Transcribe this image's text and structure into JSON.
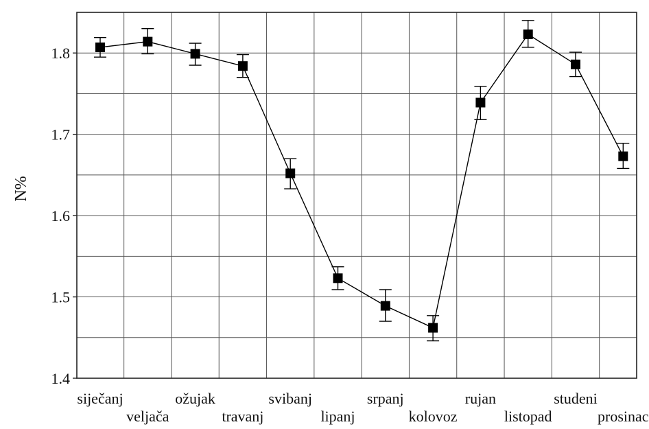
{
  "chart_data": {
    "type": "line",
    "title": "",
    "xlabel": "",
    "ylabel": "N%",
    "ylim": [
      1.4,
      1.85
    ],
    "yticks": [
      "1.4",
      "1.5",
      "1.6",
      "1.7",
      "1.8"
    ],
    "grid": true,
    "categories": [
      "siječanj",
      "veljača",
      "ožujak",
      "travanj",
      "svibanj",
      "lipanj",
      "srpanj",
      "kolovoz",
      "rujan",
      "listopad",
      "studeni",
      "prosinac"
    ],
    "series": [
      {
        "values": [
          1.807,
          1.814,
          1.799,
          1.784,
          1.652,
          1.523,
          1.489,
          1.462,
          1.739,
          1.823,
          1.786,
          1.673
        ],
        "error_low": [
          1.795,
          1.799,
          1.785,
          1.77,
          1.633,
          1.509,
          1.47,
          1.446,
          1.718,
          1.807,
          1.771,
          1.658
        ],
        "error_high": [
          1.819,
          1.83,
          1.812,
          1.798,
          1.67,
          1.537,
          1.509,
          1.477,
          1.759,
          1.84,
          1.801,
          1.689
        ],
        "marker": "square",
        "color": "#000000"
      }
    ]
  }
}
